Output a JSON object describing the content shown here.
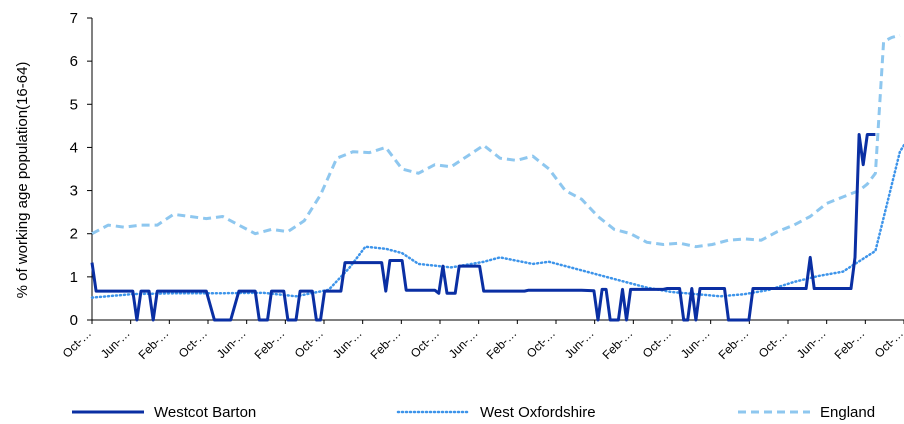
{
  "chart_data": {
    "type": "line",
    "title": "",
    "xlabel": "",
    "ylabel": "% of working age population(16-64)",
    "ylim": [
      0,
      7
    ],
    "yticks": [
      "0",
      "1",
      "2",
      "3",
      "4",
      "5",
      "6",
      "7"
    ],
    "x_tick_labels": [
      "Oct-…",
      "Jun-…",
      "Feb-…",
      "Oct-…",
      "Jun-…",
      "Feb-…",
      "Oct-…",
      "Jun-…",
      "Feb-…",
      "Oct-…",
      "Jun-…",
      "Feb-…",
      "Oct-…",
      "Jun-…",
      "Feb-…",
      "Oct-…",
      "Jun-…",
      "Feb-…",
      "Oct-…",
      "Jun-…",
      "Feb-…",
      "Oct-…"
    ],
    "x_count": 172,
    "grid": false,
    "legend_position": "bottom",
    "series": [
      {
        "name": "Westcot Barton",
        "color": "#0a2fa3",
        "style": "solid",
        "points": [
          [
            0,
            1.33
          ],
          [
            1,
            0.67
          ],
          [
            10,
            0.67
          ],
          [
            11,
            0
          ],
          [
            12,
            0.67
          ],
          [
            14,
            0.67
          ],
          [
            15,
            0
          ],
          [
            16,
            0.67
          ],
          [
            28,
            0.67
          ],
          [
            30,
            0
          ],
          [
            34,
            0
          ],
          [
            36,
            0.67
          ],
          [
            40,
            0.67
          ],
          [
            41,
            0
          ],
          [
            43,
            0
          ],
          [
            44,
            0.67
          ],
          [
            47,
            0.67
          ],
          [
            48,
            0
          ],
          [
            50,
            0
          ],
          [
            51,
            0.67
          ],
          [
            54,
            0.67
          ],
          [
            55,
            0
          ],
          [
            56,
            0
          ],
          [
            57,
            0.67
          ],
          [
            61,
            0.67
          ],
          [
            62,
            1.33
          ],
          [
            71,
            1.33
          ],
          [
            72,
            0.67
          ],
          [
            73,
            1.38
          ],
          [
            76,
            1.38
          ],
          [
            77,
            0.69
          ],
          [
            84,
            0.69
          ],
          [
            85,
            0.62
          ],
          [
            86,
            1.25
          ],
          [
            87,
            0.62
          ],
          [
            89,
            0.62
          ],
          [
            90,
            1.25
          ],
          [
            95,
            1.25
          ],
          [
            96,
            0.67
          ],
          [
            106,
            0.67
          ],
          [
            107,
            0.69
          ],
          [
            120,
            0.69
          ],
          [
            123,
            0.68
          ],
          [
            124,
            0
          ],
          [
            125,
            0.71
          ],
          [
            126,
            0.71
          ],
          [
            127,
            0
          ],
          [
            129,
            0
          ],
          [
            130,
            0.71
          ],
          [
            131,
            0
          ],
          [
            132,
            0.71
          ],
          [
            140,
            0.71
          ],
          [
            141,
            0.73
          ],
          [
            144,
            0.73
          ],
          [
            145,
            0
          ],
          [
            146,
            0
          ],
          [
            147,
            0.73
          ],
          [
            148,
            0
          ],
          [
            149,
            0.73
          ],
          [
            155,
            0.73
          ],
          [
            156,
            0
          ],
          [
            161,
            0
          ],
          [
            162,
            0.73
          ],
          [
            175,
            0.73
          ],
          [
            176,
            1.45
          ],
          [
            177,
            0.73
          ],
          [
            186,
            0.73
          ],
          [
            187,
            1.45
          ],
          [
            188,
            4.3
          ],
          [
            189,
            3.6
          ],
          [
            190,
            4.3
          ],
          [
            192,
            4.3
          ]
        ]
      },
      {
        "name": "West Oxfordshire",
        "color": "#3d94ea",
        "style": "dotted",
        "points": [
          [
            0,
            0.52
          ],
          [
            10,
            0.6
          ],
          [
            20,
            0.62
          ],
          [
            30,
            0.62
          ],
          [
            42,
            0.63
          ],
          [
            50,
            0.55
          ],
          [
            58,
            0.7
          ],
          [
            63,
            1.2
          ],
          [
            67,
            1.7
          ],
          [
            72,
            1.65
          ],
          [
            76,
            1.55
          ],
          [
            80,
            1.3
          ],
          [
            88,
            1.22
          ],
          [
            96,
            1.35
          ],
          [
            100,
            1.45
          ],
          [
            108,
            1.3
          ],
          [
            112,
            1.35
          ],
          [
            118,
            1.2
          ],
          [
            124,
            1.05
          ],
          [
            130,
            0.9
          ],
          [
            136,
            0.75
          ],
          [
            142,
            0.65
          ],
          [
            148,
            0.6
          ],
          [
            154,
            0.55
          ],
          [
            160,
            0.6
          ],
          [
            166,
            0.7
          ],
          [
            172,
            0.88
          ],
          [
            178,
            1.02
          ],
          [
            184,
            1.12
          ],
          [
            190,
            1.48
          ],
          [
            192,
            1.6
          ],
          [
            198,
            3.9
          ],
          [
            200,
            4.2
          ]
        ]
      },
      {
        "name": "England",
        "color": "#8ec7ef",
        "style": "dashed",
        "points": [
          [
            0,
            2.0
          ],
          [
            4,
            2.2
          ],
          [
            8,
            2.15
          ],
          [
            12,
            2.2
          ],
          [
            16,
            2.2
          ],
          [
            20,
            2.45
          ],
          [
            24,
            2.4
          ],
          [
            28,
            2.35
          ],
          [
            32,
            2.4
          ],
          [
            36,
            2.2
          ],
          [
            40,
            2.0
          ],
          [
            44,
            2.1
          ],
          [
            48,
            2.05
          ],
          [
            52,
            2.3
          ],
          [
            56,
            2.9
          ],
          [
            60,
            3.75
          ],
          [
            64,
            3.9
          ],
          [
            68,
            3.88
          ],
          [
            72,
            4.0
          ],
          [
            76,
            3.5
          ],
          [
            80,
            3.4
          ],
          [
            84,
            3.6
          ],
          [
            88,
            3.55
          ],
          [
            92,
            3.8
          ],
          [
            96,
            4.05
          ],
          [
            100,
            3.75
          ],
          [
            104,
            3.7
          ],
          [
            108,
            3.8
          ],
          [
            112,
            3.5
          ],
          [
            116,
            3.0
          ],
          [
            120,
            2.8
          ],
          [
            124,
            2.4
          ],
          [
            128,
            2.1
          ],
          [
            132,
            2.0
          ],
          [
            136,
            1.8
          ],
          [
            140,
            1.75
          ],
          [
            144,
            1.78
          ],
          [
            148,
            1.7
          ],
          [
            152,
            1.75
          ],
          [
            156,
            1.85
          ],
          [
            160,
            1.88
          ],
          [
            164,
            1.85
          ],
          [
            168,
            2.05
          ],
          [
            172,
            2.2
          ],
          [
            176,
            2.4
          ],
          [
            180,
            2.7
          ],
          [
            184,
            2.85
          ],
          [
            188,
            3.0
          ],
          [
            190,
            3.15
          ],
          [
            192,
            3.4
          ],
          [
            194,
            6.45
          ],
          [
            196,
            6.55
          ],
          [
            198,
            6.6
          ]
        ]
      }
    ]
  }
}
